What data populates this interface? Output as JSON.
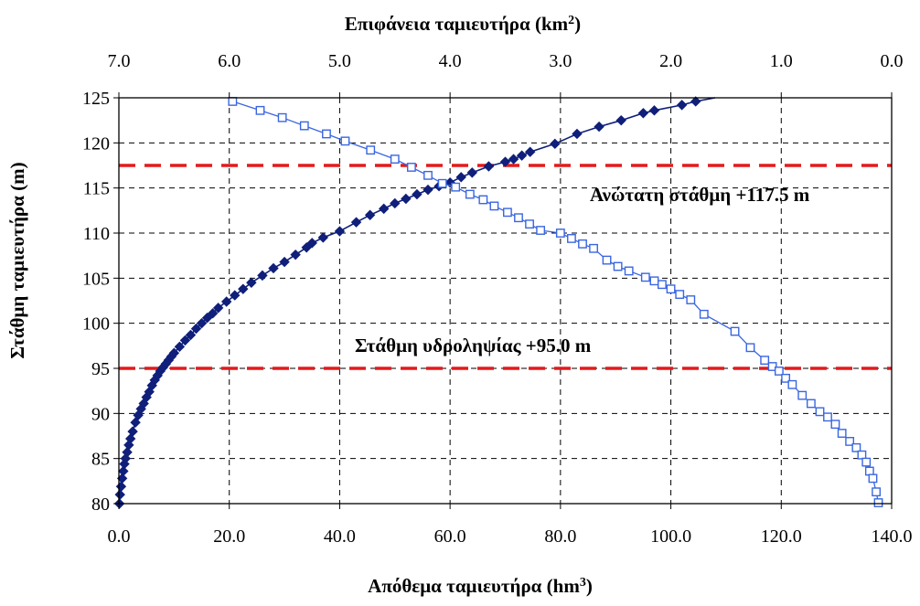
{
  "chart_data": {
    "type": "scatter",
    "title_top_axis": "Επιφάνεια ταμιευτήρα (km²)",
    "xlabel": "Απόθεμα ταμιευτήρα (hm³)",
    "ylabel": "Στάθμη ταμιευτήρα (m)",
    "xlim": [
      0,
      140
    ],
    "x2lim": [
      7,
      0
    ],
    "ylim": [
      80,
      125
    ],
    "x_ticks": [
      "0.0",
      "20.0",
      "40.0",
      "60.0",
      "80.0",
      "100.0",
      "120.0",
      "140.0"
    ],
    "x2_ticks": [
      "7.0",
      "6.0",
      "5.0",
      "4.0",
      "3.0",
      "2.0",
      "1.0",
      "0.0"
    ],
    "y_ticks": [
      "80",
      "85",
      "90",
      "95",
      "100",
      "105",
      "110",
      "115",
      "120",
      "125"
    ],
    "grid": true,
    "colors": {
      "storage": "#0f1f7a",
      "area": "#3a66e0",
      "reference_lines": "#e41a1c"
    },
    "series": [
      {
        "axis": "bottom",
        "marker": "filled-diamond",
        "points": [
          [
            0.1,
            80.0
          ],
          [
            0.2,
            81.0
          ],
          [
            0.4,
            81.9
          ],
          [
            0.6,
            82.8
          ],
          [
            0.8,
            83.6
          ],
          [
            1.0,
            84.4
          ],
          [
            1.2,
            85.0
          ],
          [
            1.5,
            85.7
          ],
          [
            1.8,
            86.5
          ],
          [
            2.1,
            87.2
          ],
          [
            2.5,
            88.0
          ],
          [
            3.0,
            89.0
          ],
          [
            3.5,
            89.8
          ],
          [
            4.0,
            90.5
          ],
          [
            4.5,
            91.1
          ],
          [
            5.0,
            91.8
          ],
          [
            5.5,
            92.4
          ],
          [
            6.0,
            93.1
          ],
          [
            6.5,
            93.7
          ],
          [
            7.0,
            94.2
          ],
          [
            7.5,
            94.7
          ],
          [
            8.0,
            95.1
          ],
          [
            8.5,
            95.5
          ],
          [
            9.0,
            95.9
          ],
          [
            9.5,
            96.3
          ],
          [
            10.0,
            96.7
          ],
          [
            11.0,
            97.4
          ],
          [
            12.0,
            98.1
          ],
          [
            13.0,
            98.7
          ],
          [
            14.0,
            99.4
          ],
          [
            15.0,
            100.0
          ],
          [
            16.0,
            100.6
          ],
          [
            17.0,
            101.1
          ],
          [
            18.0,
            101.7
          ],
          [
            19.5,
            102.4
          ],
          [
            21.0,
            103.1
          ],
          [
            22.5,
            103.8
          ],
          [
            24.0,
            104.5
          ],
          [
            26.0,
            105.3
          ],
          [
            28.0,
            106.1
          ],
          [
            30.0,
            106.8
          ],
          [
            32.0,
            107.6
          ],
          [
            34.0,
            108.4
          ],
          [
            35.0,
            108.9
          ],
          [
            37.0,
            109.5
          ],
          [
            40.0,
            110.2
          ],
          [
            43.0,
            111.2
          ],
          [
            45.5,
            112.0
          ],
          [
            48.0,
            112.7
          ],
          [
            50.0,
            113.3
          ],
          [
            52.0,
            113.8
          ],
          [
            54.0,
            114.3
          ],
          [
            56.0,
            114.8
          ],
          [
            58.0,
            115.2
          ],
          [
            60.0,
            115.6
          ],
          [
            62.0,
            116.2
          ],
          [
            64.0,
            116.7
          ],
          [
            67.0,
            117.4
          ],
          [
            70.0,
            117.9
          ],
          [
            71.5,
            118.2
          ],
          [
            73.0,
            118.6
          ],
          [
            74.5,
            119.0
          ],
          [
            79.0,
            119.9
          ],
          [
            83.0,
            121.0
          ],
          [
            87.0,
            121.8
          ],
          [
            91.0,
            122.5
          ],
          [
            95.0,
            123.3
          ],
          [
            97.0,
            123.6
          ],
          [
            102.0,
            124.2
          ],
          [
            104.5,
            124.6
          ]
        ]
      },
      {
        "axis": "top",
        "marker": "open-square",
        "points": [
          [
            5.97,
            124.6
          ],
          [
            5.72,
            123.6
          ],
          [
            5.52,
            122.8
          ],
          [
            5.32,
            121.9
          ],
          [
            5.12,
            121.0
          ],
          [
            4.95,
            120.2
          ],
          [
            4.72,
            119.2
          ],
          [
            4.5,
            118.2
          ],
          [
            4.35,
            117.3
          ],
          [
            4.2,
            116.4
          ],
          [
            4.07,
            115.5
          ],
          [
            3.95,
            115.1
          ],
          [
            3.82,
            114.3
          ],
          [
            3.7,
            113.7
          ],
          [
            3.6,
            113.0
          ],
          [
            3.48,
            112.3
          ],
          [
            3.38,
            111.7
          ],
          [
            3.28,
            111.0
          ],
          [
            3.18,
            110.3
          ],
          [
            3.0,
            110.0
          ],
          [
            2.9,
            109.4
          ],
          [
            2.8,
            108.8
          ],
          [
            2.7,
            108.3
          ],
          [
            2.58,
            107.0
          ],
          [
            2.48,
            106.3
          ],
          [
            2.38,
            105.8
          ],
          [
            2.23,
            105.1
          ],
          [
            2.15,
            104.7
          ],
          [
            2.08,
            104.3
          ],
          [
            2.0,
            103.8
          ],
          [
            1.92,
            103.2
          ],
          [
            1.82,
            102.6
          ],
          [
            1.7,
            101.0
          ],
          [
            1.42,
            99.1
          ],
          [
            1.28,
            97.3
          ],
          [
            1.15,
            95.9
          ],
          [
            1.08,
            95.2
          ],
          [
            1.02,
            94.7
          ],
          [
            0.96,
            93.9
          ],
          [
            0.9,
            93.2
          ],
          [
            0.81,
            92.0
          ],
          [
            0.73,
            91.1
          ],
          [
            0.65,
            90.2
          ],
          [
            0.58,
            89.6
          ],
          [
            0.51,
            88.8
          ],
          [
            0.45,
            87.8
          ],
          [
            0.38,
            86.9
          ],
          [
            0.32,
            86.2
          ],
          [
            0.27,
            85.4
          ],
          [
            0.23,
            84.6
          ],
          [
            0.2,
            83.6
          ],
          [
            0.17,
            82.8
          ],
          [
            0.14,
            81.3
          ],
          [
            0.12,
            80.1
          ]
        ]
      }
    ],
    "reference_lines": [
      {
        "y": 117.5,
        "label": "Ανώτατη στάθμη +117.5 m"
      },
      {
        "y": 95.0,
        "label": "Στάθμη υδροληψίας +95.0 m"
      }
    ]
  }
}
